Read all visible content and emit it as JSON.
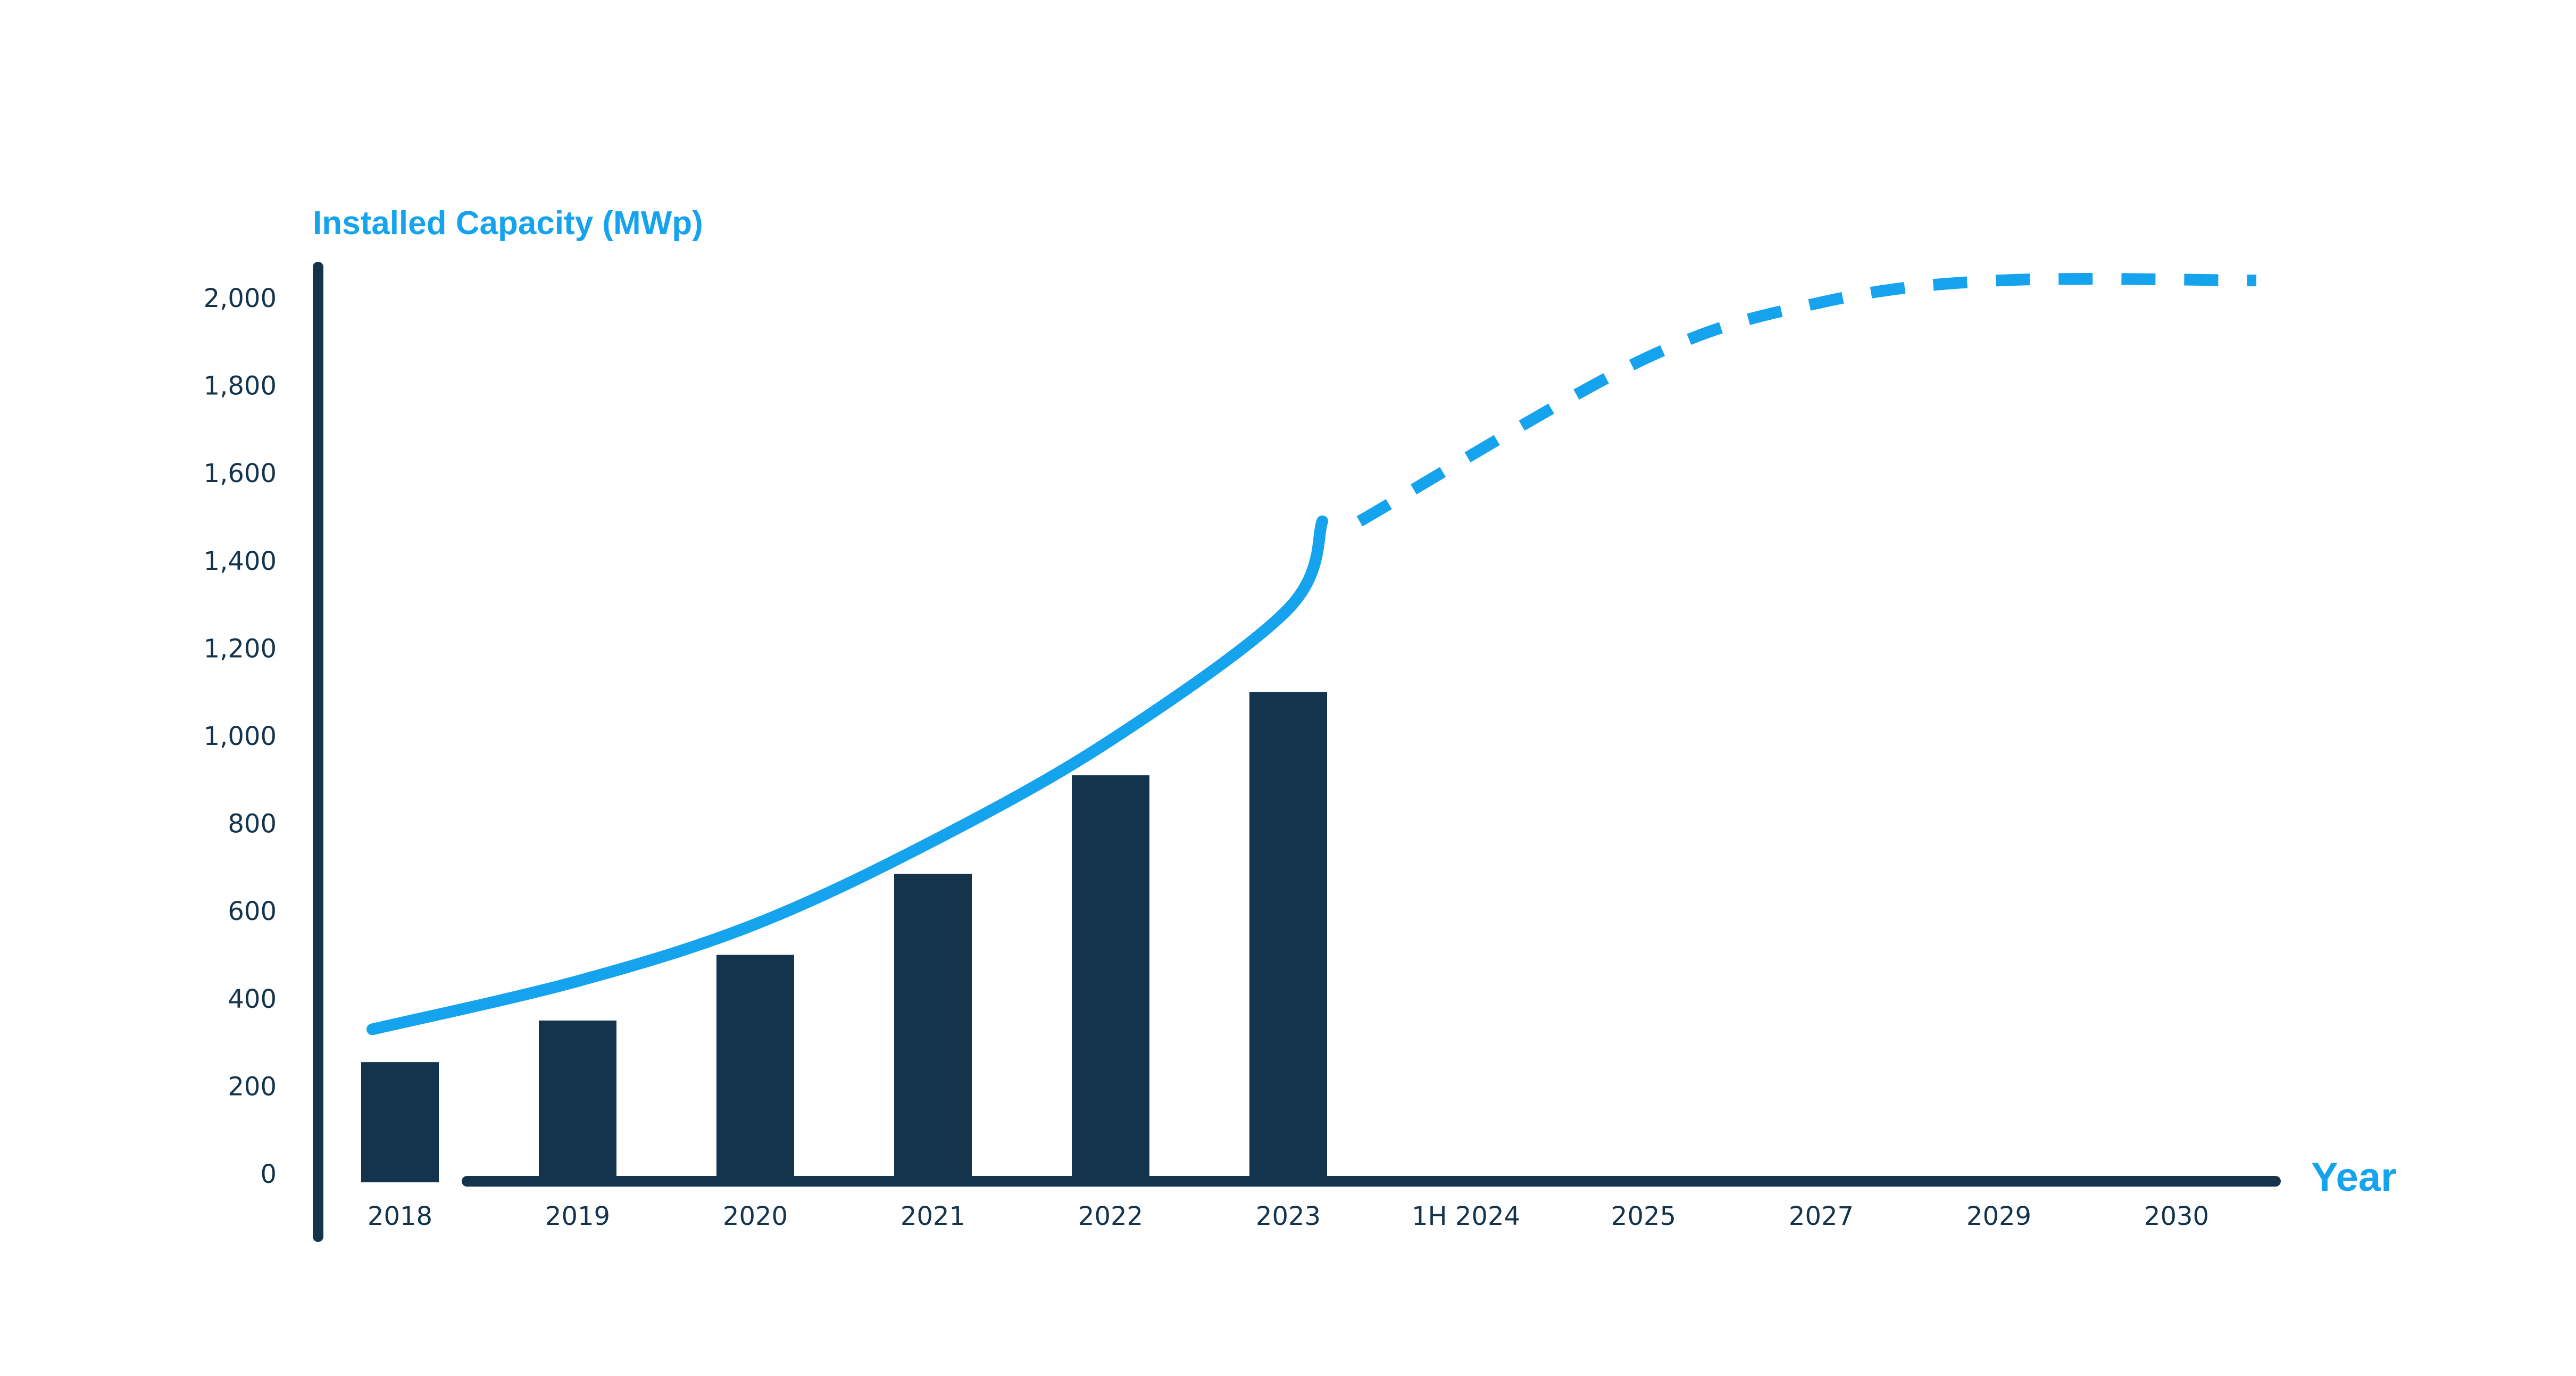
{
  "chart_data": {
    "type": "bar",
    "ylabel": "Installed Capacity (MWp)",
    "xlabel": "Year",
    "categories": [
      "2018",
      "2019",
      "2020",
      "2021",
      "2022",
      "2023",
      "1H 2024",
      "2025",
      "2027",
      "2029",
      "2030"
    ],
    "yticks": [
      "0",
      "200",
      "400",
      "600",
      "800",
      "1,000",
      "1,200",
      "1,400",
      "1,600",
      "1,800",
      "2,000"
    ],
    "ylim": [
      0,
      2000
    ],
    "bars": {
      "color": "#14344d",
      "values": [
        255,
        350,
        500,
        685,
        910,
        1100,
        null,
        null,
        null,
        null,
        null
      ]
    },
    "trend_line": {
      "color": "#16a3ee",
      "actual": {
        "x": [
          "2018",
          "2019",
          "2020",
          "2021",
          "2022",
          "2023",
          "1H 2024"
        ],
        "values": [
          330,
          440,
          570,
          760,
          990,
          1290,
          1490
        ]
      },
      "projected": {
        "x": [
          "1H 2024",
          "2025",
          "2027",
          "2029",
          "2030"
        ],
        "values": [
          1490,
          1860,
          1990,
          2040,
          2040
        ]
      }
    },
    "legend": "none",
    "grid": "off"
  }
}
